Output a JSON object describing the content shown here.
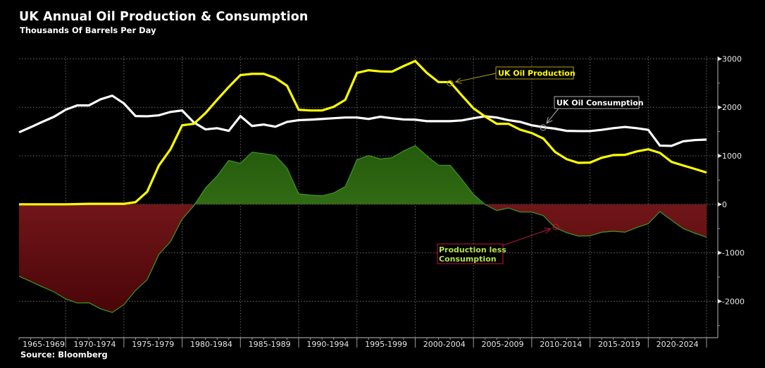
{
  "header": {
    "title": "UK Annual Oil Production & Consumption",
    "subtitle": "Thousands Of Barrels Per Day"
  },
  "footer": {
    "source": "Source: Bloomberg"
  },
  "chart_data": {
    "type": "line",
    "title": "UK Annual Oil Production & Consumption",
    "subtitle": "Thousands Of Barrels Per Day",
    "xlabel": "",
    "ylabel": "Thousands Of Barrels Per Day",
    "x": [
      1965,
      1966,
      1967,
      1968,
      1969,
      1970,
      1971,
      1972,
      1973,
      1974,
      1975,
      1976,
      1977,
      1978,
      1979,
      1980,
      1981,
      1982,
      1983,
      1984,
      1985,
      1986,
      1987,
      1988,
      1989,
      1990,
      1991,
      1992,
      1993,
      1994,
      1995,
      1996,
      1997,
      1998,
      1999,
      2000,
      2001,
      2002,
      2003,
      2004,
      2005,
      2006,
      2007,
      2008,
      2009,
      2010,
      2011,
      2012,
      2013,
      2014,
      2015,
      2016,
      2017,
      2018,
      2019,
      2020,
      2021,
      2022,
      2023,
      2024
    ],
    "x_tick_labels": [
      "1965-1969",
      "1970-1974",
      "1975-1979",
      "1980-1984",
      "1985-1989",
      "1990-1994",
      "1995-1999",
      "2000-2004",
      "2005-2009",
      "2010-2014",
      "2015-2019",
      "2020-2024"
    ],
    "y_ticks": [
      3000,
      2000,
      1000,
      0,
      -1000,
      -2000
    ],
    "y_tick_labels": [
      "3000",
      "2000",
      "1000",
      "0",
      "-1000",
      "-2000"
    ],
    "ylim": [
      -2750,
      3050
    ],
    "grid": true,
    "y_axis_side": "right",
    "series": [
      {
        "name": "UK Oil Production",
        "style": "line",
        "color": "#ffff00",
        "values": [
          0,
          0,
          0,
          0,
          0,
          5,
          10,
          10,
          10,
          10,
          45,
          260,
          800,
          1135,
          1630,
          1660,
          1880,
          2155,
          2420,
          2665,
          2690,
          2690,
          2605,
          2445,
          1950,
          1935,
          1935,
          2010,
          2155,
          2710,
          2765,
          2740,
          2735,
          2850,
          2955,
          2710,
          2520,
          2520,
          2245,
          1980,
          1810,
          1660,
          1660,
          1540,
          1470,
          1355,
          1080,
          930,
          855,
          860,
          960,
          1015,
          1020,
          1090,
          1135,
          1060,
          875,
          800,
          730,
          655
        ]
      },
      {
        "name": "UK Oil Consumption",
        "style": "line",
        "color": "#ffffff",
        "values": [
          1485,
          1590,
          1700,
          1805,
          1950,
          2040,
          2040,
          2165,
          2240,
          2080,
          1820,
          1815,
          1835,
          1905,
          1935,
          1690,
          1545,
          1570,
          1515,
          1820,
          1615,
          1645,
          1600,
          1700,
          1735,
          1745,
          1760,
          1775,
          1790,
          1790,
          1760,
          1805,
          1775,
          1750,
          1745,
          1715,
          1715,
          1715,
          1730,
          1775,
          1815,
          1790,
          1735,
          1700,
          1630,
          1590,
          1560,
          1515,
          1510,
          1510,
          1535,
          1570,
          1595,
          1570,
          1535,
          1210,
          1205,
          1300,
          1325,
          1335
        ]
      },
      {
        "name": "Production less Consumption",
        "style": "area",
        "positive_color": "#3f7f1d",
        "negative_color": "#7a1a1e",
        "outline_color": "#3c9a22",
        "values": [
          -1485,
          -1590,
          -1700,
          -1805,
          -1950,
          -2035,
          -2030,
          -2155,
          -2230,
          -2070,
          -1775,
          -1555,
          -1035,
          -770,
          -305,
          -30,
          335,
          585,
          905,
          845,
          1075,
          1045,
          1005,
          745,
          215,
          190,
          175,
          235,
          365,
          920,
          1005,
          935,
          960,
          1100,
          1210,
          995,
          805,
          805,
          515,
          205,
          -5,
          -130,
          -75,
          -160,
          -160,
          -235,
          -480,
          -585,
          -655,
          -650,
          -575,
          -555,
          -575,
          -480,
          -400,
          -150,
          -330,
          -500,
          -595,
          -680
        ]
      }
    ],
    "annotations": [
      {
        "text": "UK Oil Production",
        "series": "UK Oil Production",
        "x": 2003,
        "color": "#ffff00",
        "border": "#b3a51a"
      },
      {
        "text": "UK Oil Consumption",
        "series": "UK Oil Consumption",
        "x": 2010,
        "color": "#ffffff",
        "border": "#b0b0b0"
      },
      {
        "text": "Production less Consumption",
        "series": "Production less Consumption",
        "x": 2011,
        "color": "#b5e04a",
        "border": "#c4143c"
      }
    ],
    "legend": "none"
  }
}
